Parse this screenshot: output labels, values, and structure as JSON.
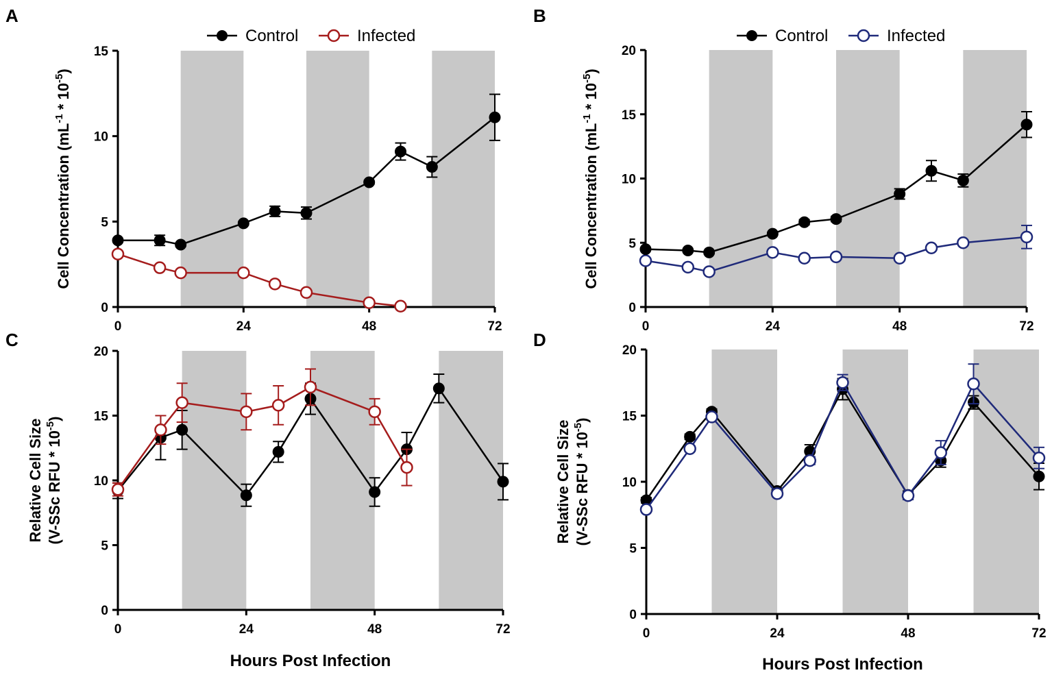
{
  "figure": {
    "shaded_color": "#c8c8c8",
    "legend_control_label": "Control",
    "legend_infected_label": "Infected",
    "control_color": "#000000",
    "infected_color_left": "#a51c1c",
    "infected_color_right": "#1f2a7a"
  },
  "chart_data": [
    {
      "panel": "A",
      "type": "line",
      "title": "",
      "ylabel_lines": [
        "Cell Concentration (mL-1 * 10-5)"
      ],
      "xlabel": "",
      "xlim": [
        0,
        72
      ],
      "ylim": [
        0,
        15
      ],
      "xticks": [
        0,
        24,
        48,
        72
      ],
      "xtick_labels": [
        "0",
        "24",
        "48",
        "72"
      ],
      "yticks": [
        0,
        5,
        10,
        15
      ],
      "ytick_labels": [
        "0",
        "5",
        "10",
        "15"
      ],
      "shaded_ranges": [
        [
          12,
          24
        ],
        [
          36,
          48
        ],
        [
          60,
          72
        ]
      ],
      "legend": "top-center",
      "series": [
        {
          "name": "Control",
          "marker": "filled",
          "x": [
            0,
            8,
            12,
            24,
            30,
            36,
            48,
            54,
            60,
            72
          ],
          "y": [
            3.9,
            3.9,
            3.65,
            4.9,
            5.6,
            5.5,
            7.3,
            9.1,
            8.2,
            11.1
          ],
          "err": [
            0.1,
            0.3,
            0.1,
            0.1,
            0.3,
            0.35,
            0.1,
            0.5,
            0.6,
            1.35
          ]
        },
        {
          "name": "Infected",
          "marker": "open",
          "x": [
            0,
            8,
            12,
            24,
            30,
            36,
            48,
            54
          ],
          "y": [
            3.1,
            2.3,
            2.0,
            2.0,
            1.35,
            0.85,
            0.25,
            0.05
          ],
          "err": [
            0.15,
            0.1,
            0.1,
            0.1,
            0.1,
            0.1,
            0.1,
            0.05
          ]
        }
      ]
    },
    {
      "panel": "B",
      "type": "line",
      "title": "",
      "ylabel_lines": [
        "Cell Concentration (mL-1 * 10-5)"
      ],
      "xlabel": "",
      "xlim": [
        0,
        72
      ],
      "ylim": [
        0,
        20
      ],
      "xticks": [
        0,
        24,
        48,
        72
      ],
      "xtick_labels": [
        "0",
        "24",
        "48",
        "72"
      ],
      "yticks": [
        0,
        5,
        10,
        15,
        20
      ],
      "ytick_labels": [
        "0",
        "5",
        "10",
        "15",
        "20"
      ],
      "shaded_ranges": [
        [
          12,
          24
        ],
        [
          36,
          48
        ],
        [
          60,
          72
        ]
      ],
      "legend": "top-center",
      "series": [
        {
          "name": "Control",
          "marker": "filled",
          "x": [
            0,
            8,
            12,
            24,
            30,
            36,
            48,
            54,
            60,
            72
          ],
          "y": [
            4.5,
            4.4,
            4.25,
            5.7,
            6.6,
            6.85,
            8.8,
            10.6,
            9.85,
            14.2
          ],
          "err": [
            0.1,
            0.1,
            0.1,
            0.1,
            0.2,
            0.2,
            0.4,
            0.8,
            0.5,
            1.0
          ]
        },
        {
          "name": "Infected",
          "marker": "open",
          "x": [
            0,
            8,
            12,
            24,
            30,
            36,
            48,
            54,
            60,
            72
          ],
          "y": [
            3.6,
            3.1,
            2.75,
            4.25,
            3.8,
            3.9,
            3.8,
            4.6,
            5.0,
            5.45
          ],
          "err": [
            0.1,
            0.1,
            0.1,
            0.1,
            0.1,
            0.1,
            0.1,
            0.1,
            0.1,
            0.9
          ]
        }
      ]
    },
    {
      "panel": "C",
      "type": "line",
      "title": "",
      "ylabel_lines": [
        "Relative Cell Size",
        "(V-SSc RFU * 10-5)"
      ],
      "xlabel": "Hours Post Infection",
      "xlim": [
        0,
        72
      ],
      "ylim": [
        0,
        20
      ],
      "xticks": [
        0,
        24,
        48,
        72
      ],
      "xtick_labels": [
        "0",
        "24",
        "48",
        "72"
      ],
      "yticks": [
        0,
        5,
        10,
        15,
        20
      ],
      "ytick_labels": [
        "0",
        "5",
        "10",
        "15",
        "20"
      ],
      "shaded_ranges": [
        [
          12,
          24
        ],
        [
          36,
          48
        ],
        [
          60,
          72
        ]
      ],
      "legend": "none",
      "series": [
        {
          "name": "Control",
          "marker": "filled",
          "x": [
            0,
            8,
            12,
            24,
            30,
            36,
            48,
            54,
            60,
            72
          ],
          "y": [
            9.2,
            13.3,
            13.9,
            8.85,
            12.2,
            16.3,
            9.1,
            12.4,
            17.1,
            9.9
          ],
          "err": [
            0.6,
            1.7,
            1.5,
            0.85,
            0.8,
            1.2,
            1.1,
            1.3,
            1.1,
            1.4
          ]
        },
        {
          "name": "Infected",
          "marker": "open",
          "x": [
            0,
            8,
            12,
            24,
            30,
            36,
            48,
            54
          ],
          "y": [
            9.3,
            13.9,
            16.0,
            15.3,
            15.8,
            17.2,
            15.3,
            11.0
          ],
          "err": [
            0.5,
            1.1,
            1.5,
            1.4,
            1.5,
            1.4,
            1.0,
            1.4
          ]
        }
      ]
    },
    {
      "panel": "D",
      "type": "line",
      "title": "",
      "ylabel_lines": [
        "Relative Cell Size",
        "(V-SSc RFU * 10-5)"
      ],
      "xlabel": "Hours Post Infection",
      "xlim": [
        0,
        72
      ],
      "ylim": [
        0,
        20
      ],
      "xticks": [
        0,
        24,
        48,
        72
      ],
      "xtick_labels": [
        "0",
        "24",
        "48",
        "72"
      ],
      "yticks": [
        0,
        5,
        10,
        15,
        20
      ],
      "ytick_labels": [
        "0",
        "5",
        "10",
        "15",
        "20"
      ],
      "shaded_ranges": [
        [
          12,
          24
        ],
        [
          36,
          48
        ],
        [
          60,
          72
        ]
      ],
      "legend": "none",
      "series": [
        {
          "name": "Control",
          "marker": "filled",
          "x": [
            0,
            8,
            12,
            24,
            30,
            36,
            48,
            54,
            60,
            72
          ],
          "y": [
            8.6,
            13.4,
            15.3,
            9.3,
            12.3,
            17.0,
            9.0,
            11.6,
            16.0,
            10.4
          ],
          "err": [
            0.2,
            0.2,
            0.2,
            0.2,
            0.5,
            0.8,
            0.3,
            0.5,
            0.5,
            1.0
          ]
        },
        {
          "name": "Infected",
          "marker": "open",
          "x": [
            0,
            8,
            12,
            24,
            30,
            36,
            48,
            54,
            60,
            72
          ],
          "y": [
            7.9,
            12.5,
            14.9,
            9.1,
            11.6,
            17.5,
            8.95,
            12.2,
            17.4,
            11.8
          ],
          "err": [
            0.2,
            0.2,
            0.2,
            0.2,
            0.3,
            0.6,
            0.3,
            0.9,
            1.5,
            0.8
          ]
        }
      ]
    }
  ]
}
